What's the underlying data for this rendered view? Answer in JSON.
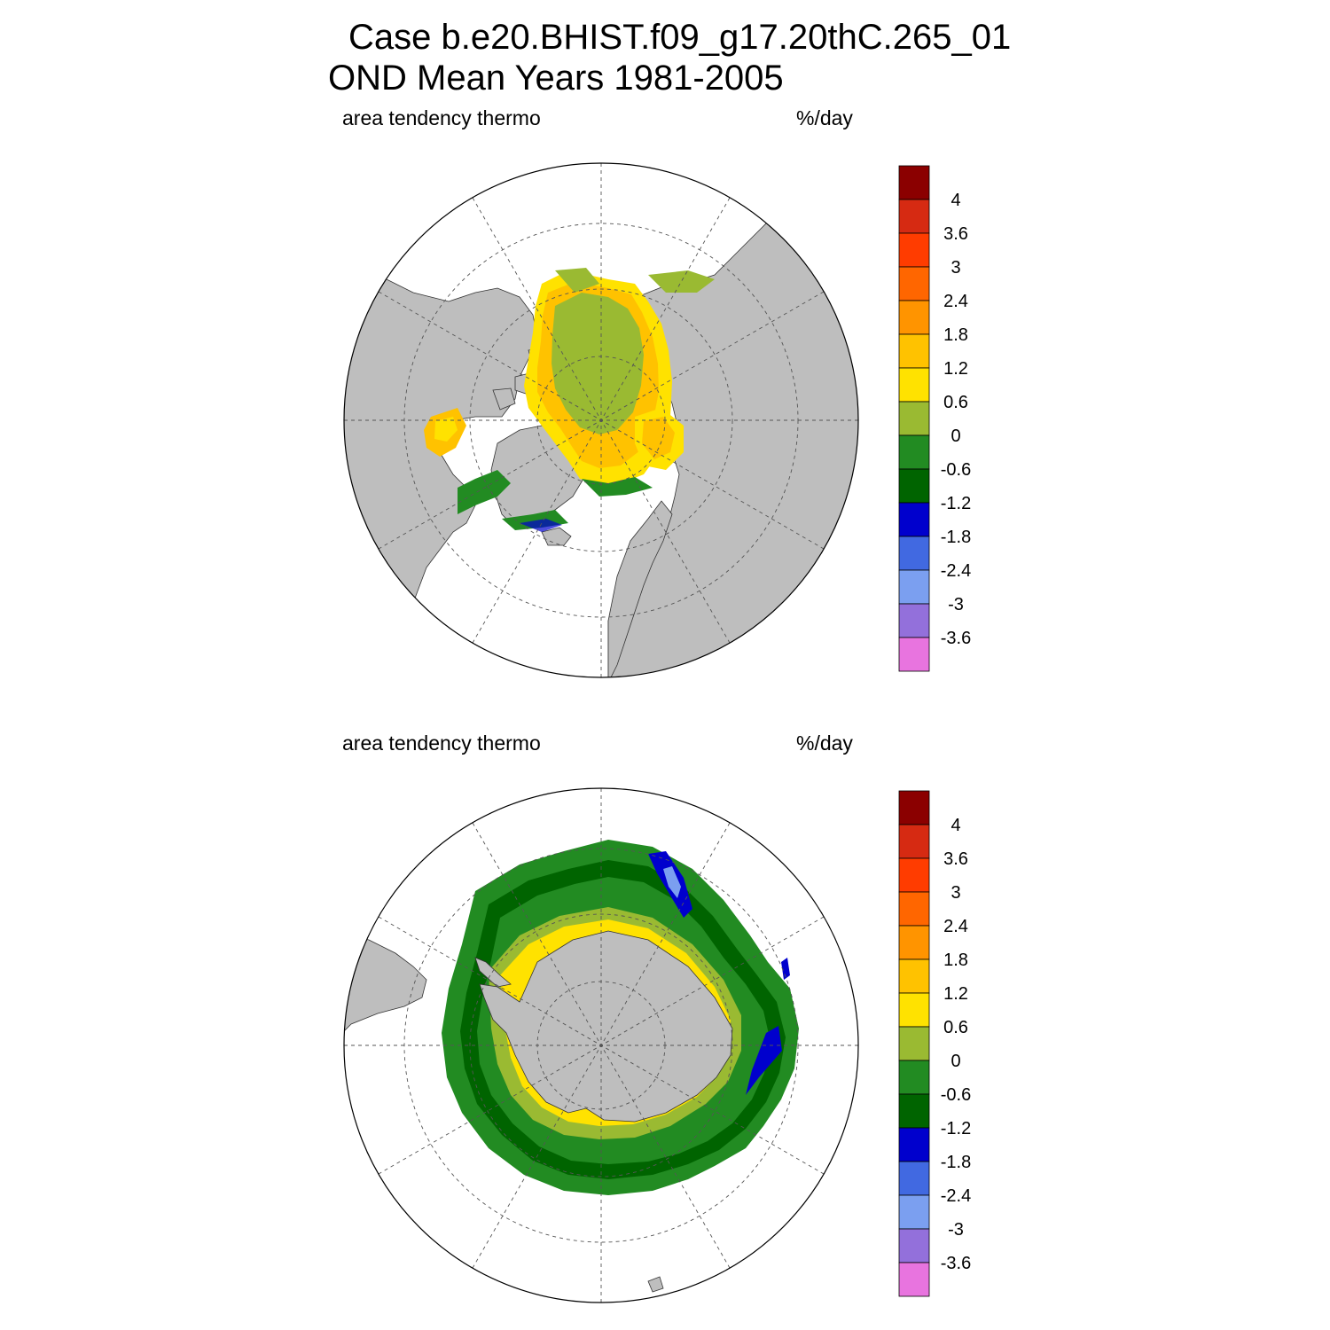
{
  "title": {
    "line1": "Case b.e20.BHIST.f09_g17.20thC.265_01",
    "line2": "OND Mean   Years 1981-2005"
  },
  "panels": [
    {
      "id": "north",
      "hemisphere": "north",
      "label": "area tendency thermo",
      "units": "%/day"
    },
    {
      "id": "south",
      "hemisphere": "south",
      "label": "area tendency thermo",
      "units": "%/day"
    }
  ],
  "colorbar": {
    "labels": [
      "4",
      "3.6",
      "3",
      "2.4",
      "1.8",
      "1.2",
      "0.6",
      "0",
      "-0.6",
      "-1.2",
      "-1.8",
      "-2.4",
      "-3",
      "-3.6"
    ],
    "colors": [
      "#8b0000",
      "#d62a12",
      "#ff3c00",
      "#ff6600",
      "#ff9400",
      "#ffc200",
      "#ffe200",
      "#9aba32",
      "#228b22",
      "#006400",
      "#0000cd",
      "#4169e1",
      "#7b9ff0",
      "#9370db",
      "#e874df"
    ]
  },
  "palette": {
    "land": "#bebebe",
    "ocean": "#ffffff",
    "grid": "#555555"
  }
}
